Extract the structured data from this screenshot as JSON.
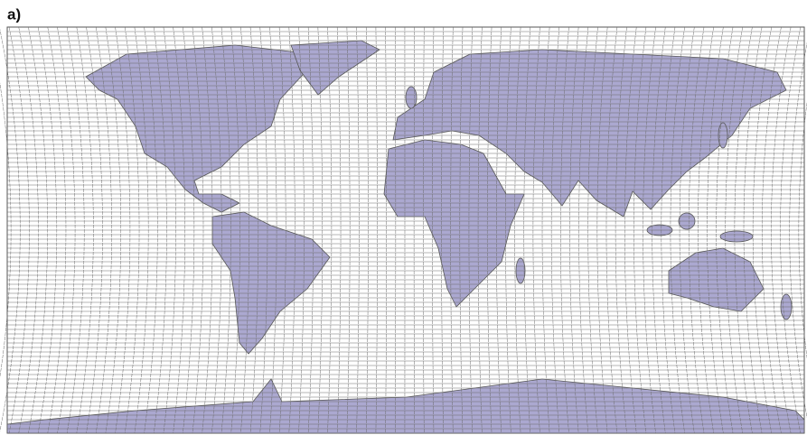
{
  "label": "a)"
}
